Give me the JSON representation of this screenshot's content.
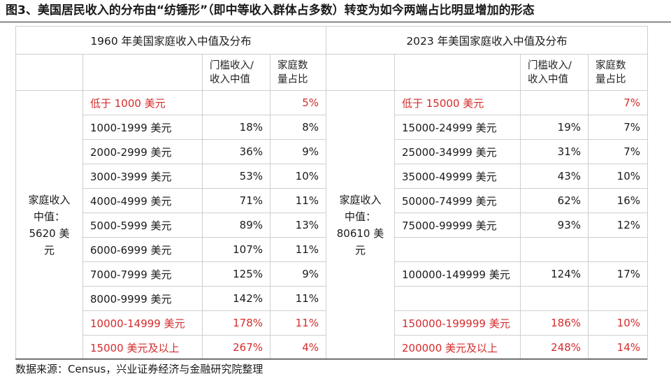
{
  "title": "图3、美国居民收入的分布由“纺锤形”（即中等收入群体占多数）转变为如今两端占比明显增加的形态",
  "left": {
    "heading": "1960 年美国家庭收入中值及分布",
    "col_threshold": "门槛收入/\n收入中值",
    "col_share": "家庭数\n量占比",
    "group_label": "家庭收入\n中值：\n5620 美\n元",
    "rows": [
      {
        "range": "低于 1000 美元",
        "threshold": "",
        "share": "5%"
      },
      {
        "range": "1000-1999 美元",
        "threshold": "18%",
        "share": "8%"
      },
      {
        "range": "2000-2999 美元",
        "threshold": "36%",
        "share": "9%"
      },
      {
        "range": "3000-3999 美元",
        "threshold": "53%",
        "share": "10%"
      },
      {
        "range": "4000-4999 美元",
        "threshold": "71%",
        "share": "11%"
      },
      {
        "range": "5000-5999 美元",
        "threshold": "89%",
        "share": "13%"
      },
      {
        "range": "6000-6999 美元",
        "threshold": "107%",
        "share": "11%"
      },
      {
        "range": "7000-7999 美元",
        "threshold": "125%",
        "share": "9%"
      },
      {
        "range": "8000-9999 美元",
        "threshold": "142%",
        "share": "11%"
      },
      {
        "range": "10000-14999 美元",
        "threshold": "178%",
        "share": "11%"
      },
      {
        "range": "15000 美元及以上",
        "threshold": "267%",
        "share": "4%"
      }
    ]
  },
  "right": {
    "heading": "2023 年美国家庭收入中值及分布",
    "col_threshold": "门槛收入/\n收入中值",
    "col_share": "家庭数\n量占比",
    "group_label": "家庭收入\n中值：\n80610 美\n元",
    "rows": [
      {
        "range": "低于 15000 美元",
        "threshold": "",
        "share": "7%"
      },
      {
        "range": "15000-24999 美元",
        "threshold": "19%",
        "share": "7%"
      },
      {
        "range": "25000-34999 美元",
        "threshold": "31%",
        "share": "7%"
      },
      {
        "range": "35000-49999 美元",
        "threshold": "43%",
        "share": "10%"
      },
      {
        "range": "50000-74999 美元",
        "threshold": "62%",
        "share": "16%"
      },
      {
        "range": "75000-99999 美元",
        "threshold": "93%",
        "share": "12%"
      },
      {
        "range": "",
        "threshold": "",
        "share": ""
      },
      {
        "range": "100000-149999 美元",
        "threshold": "124%",
        "share": "17%"
      },
      {
        "range": "",
        "threshold": "",
        "share": ""
      },
      {
        "range": "150000-199999 美元",
        "threshold": "186%",
        "share": "10%"
      },
      {
        "range": "200000 美元及以上",
        "threshold": "248%",
        "share": "14%"
      }
    ]
  },
  "highlight_rows": [
    0,
    9,
    10
  ],
  "colors": {
    "highlight": "#d52b2b",
    "text": "#1a1a1a",
    "grid": "#cfcfcf"
  },
  "source": "数据来源：Census，兴业证券经济与金融研究院整理"
}
